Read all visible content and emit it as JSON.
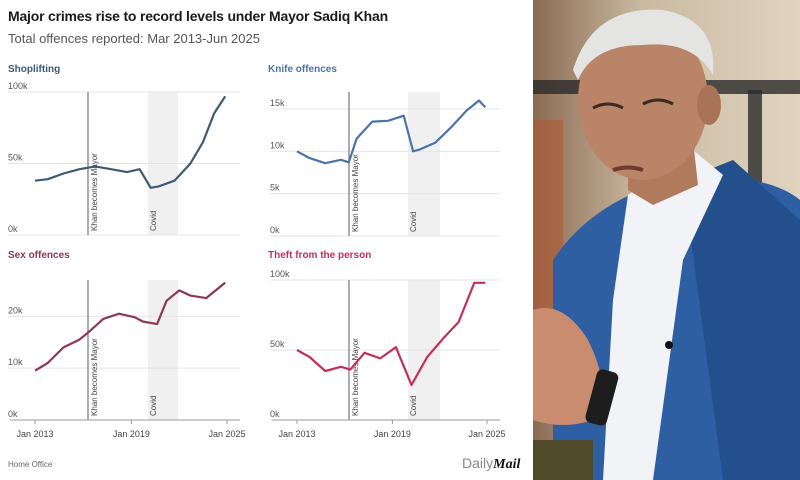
{
  "header": {
    "title": "Major crimes rise to record levels under Mayor Sadiq Khan",
    "subtitle": "Total offences reported: Mar 2013-Jun 2025"
  },
  "footer": {
    "source": "Home Office",
    "brand_prefix": "Daily",
    "brand_suffix": "Mail"
  },
  "annotations": {
    "mayor_label": "Khan becomes Mayor",
    "covid_label": "Covid"
  },
  "x_ticks": [
    "Jan 2013",
    "Jan 2019",
    "Jan 2025"
  ],
  "photo": {
    "description": "Sadiq Khan in blue blazer and white shirt gesturing with hand"
  },
  "chart_data": [
    {
      "type": "line",
      "title": "Shoplifting",
      "color": "#3d5a73",
      "y_ticks": [
        "0k",
        "50k",
        "100k"
      ],
      "ylim": [
        0,
        100000
      ],
      "xlabel": "",
      "ylabel": "",
      "x": [
        2013.2,
        2014,
        2015,
        2016,
        2017,
        2018,
        2019,
        2019.8,
        2020.5,
        2021,
        2022,
        2023,
        2023.8,
        2024.5,
        2025.2
      ],
      "values": [
        38000,
        39000,
        43000,
        46000,
        48000,
        46000,
        44000,
        46000,
        33000,
        34000,
        38000,
        50000,
        65000,
        85000,
        97000
      ]
    },
    {
      "type": "line",
      "title": "Knife offences",
      "color": "#4a74a8",
      "y_ticks": [
        "0k",
        "5k",
        "10k",
        "15k"
      ],
      "ylim": [
        0,
        17000
      ],
      "xlabel": "",
      "ylabel": "",
      "x": [
        2013.2,
        2014,
        2015,
        2016,
        2016.5,
        2017,
        2018,
        2019,
        2020,
        2020.6,
        2021,
        2022,
        2023,
        2024,
        2024.8,
        2025.2
      ],
      "values": [
        10000,
        9200,
        8600,
        9000,
        8700,
        11500,
        13500,
        13600,
        14200,
        10000,
        10200,
        11000,
        12800,
        14800,
        16000,
        15200
      ]
    },
    {
      "type": "line",
      "title": "Sex offences",
      "color": "#8b3a52",
      "y_ticks": [
        "0k",
        "10k",
        "20k"
      ],
      "ylim": [
        0,
        27000
      ],
      "xlabel": "",
      "ylabel": "",
      "x": [
        2013.2,
        2014,
        2015,
        2016,
        2016.6,
        2017.5,
        2018.5,
        2019.5,
        2020,
        2020.9,
        2021.5,
        2022.3,
        2023,
        2024,
        2025.2
      ],
      "values": [
        9500,
        11000,
        14000,
        15500,
        17000,
        19500,
        20500,
        19800,
        19000,
        18500,
        23000,
        25000,
        24000,
        23500,
        26500
      ]
    },
    {
      "type": "line",
      "title": "Theft from the person",
      "color": "#c2305a",
      "y_ticks": [
        "0k",
        "50k",
        "100k"
      ],
      "ylim": [
        0,
        100000
      ],
      "xlabel": "",
      "ylabel": "",
      "x": [
        2013.2,
        2014,
        2015,
        2016,
        2016.6,
        2017.5,
        2018.5,
        2019.5,
        2020.5,
        2021.5,
        2022.5,
        2023.5,
        2024.5,
        2025.2
      ],
      "values": [
        50000,
        45000,
        35000,
        38000,
        36000,
        48000,
        44000,
        52000,
        25000,
        45000,
        58000,
        70000,
        98000,
        98000
      ]
    }
  ]
}
